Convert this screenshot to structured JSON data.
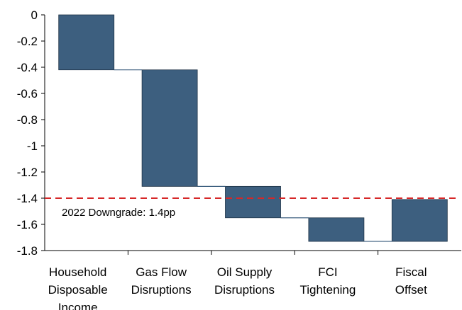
{
  "chart_data": {
    "type": "waterfall",
    "title": "",
    "xlabel": "",
    "ylabel": "",
    "ylim": [
      -1.8,
      0
    ],
    "yticks": [
      0,
      -0.2,
      -0.4,
      -0.6,
      -0.8,
      -1,
      -1.2,
      -1.4,
      -1.6,
      -1.8
    ],
    "ytick_labels": [
      "0",
      "-0.2",
      "-0.4",
      "-0.6",
      "-0.8",
      "-1",
      "-1.2",
      "-1.4",
      "-1.6",
      "-1.8"
    ],
    "grid": false,
    "categories": [
      [
        "Household",
        "Disposable",
        "Income"
      ],
      [
        "Gas Flow",
        "Disruptions"
      ],
      [
        "Oil Supply",
        "Disruptions"
      ],
      [
        "FCI",
        "Tightening"
      ],
      [
        "Fiscal",
        "Offset"
      ]
    ],
    "steps": [
      {
        "start": 0,
        "end": -0.42
      },
      {
        "start": -0.42,
        "end": -1.31
      },
      {
        "start": -1.31,
        "end": -1.55
      },
      {
        "start": -1.55,
        "end": -1.73
      },
      {
        "start": -1.73,
        "end": -1.41
      }
    ],
    "reference_line": {
      "value": -1.4,
      "label": "2022 Downgrade: 1.4pp",
      "color": "#d62728"
    },
    "bar_color": "#3d5f7f",
    "connector_color": "#3d5f7f"
  }
}
